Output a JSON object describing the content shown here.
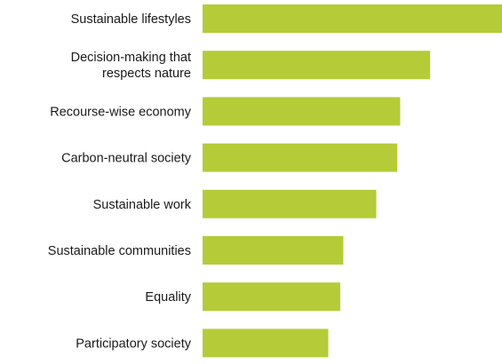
{
  "chart_data": {
    "type": "bar",
    "orientation": "horizontal",
    "categories": [
      [
        "Sustainable lifestyles"
      ],
      [
        "Decision-making that",
        "respects nature"
      ],
      [
        "Recourse-wise economy"
      ],
      [
        "Carbon-neutral society"
      ],
      [
        "Sustainable work"
      ],
      [
        "Sustainable communities"
      ],
      [
        "Equality"
      ],
      [
        "Participatory society"
      ]
    ],
    "values": [
      100,
      76,
      66,
      65,
      58,
      47,
      46,
      42
    ],
    "xlim": [
      0,
      100
    ],
    "bar_color": "#b5cc38",
    "grid": false,
    "axes_visible": false,
    "legend": "none"
  }
}
